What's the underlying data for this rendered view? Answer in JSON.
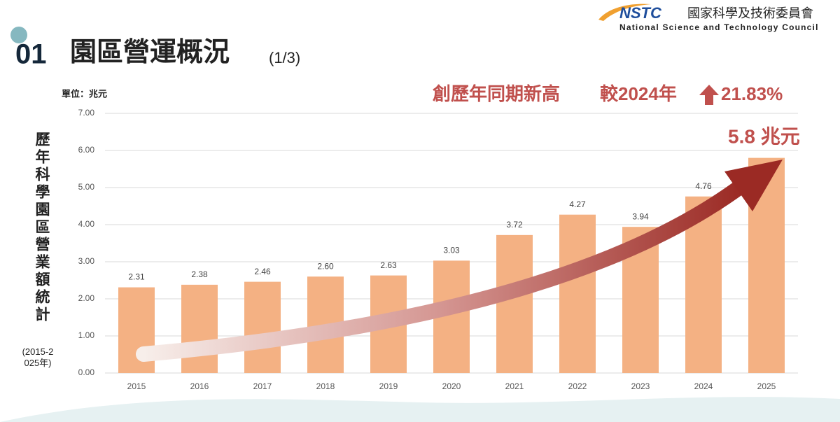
{
  "header": {
    "number": "01",
    "title": "園區營運概況",
    "page": "(1/3)"
  },
  "logo": {
    "mark": "NSTC",
    "name_zh": "國家科學及技術委員會",
    "name_en": "National Science and Technology Council"
  },
  "chart_data": {
    "type": "bar",
    "unit_label": "單位：兆元",
    "y_label": "歷年科學園區營業額統計",
    "y_label_note": "(2015-2025年)",
    "annotations": {
      "headline": "創歷年同期新高",
      "compare": "較2024年",
      "growth": "21.83%",
      "total": "5.8 兆元"
    },
    "categories": [
      "2015",
      "2016",
      "2017",
      "2018",
      "2019",
      "2020",
      "2021",
      "2022",
      "2023",
      "2024",
      "2025"
    ],
    "values": [
      2.31,
      2.38,
      2.46,
      2.6,
      2.63,
      3.03,
      3.72,
      4.27,
      3.94,
      4.76,
      5.8
    ],
    "value_labels": [
      "2.31",
      "2.38",
      "2.46",
      "2.60",
      "2.63",
      "3.03",
      "3.72",
      "4.27",
      "3.94",
      "4.76",
      null
    ],
    "color": "#f4b183",
    "ylim": [
      0,
      7
    ],
    "yticks": [
      {
        "value": 0,
        "label": "0.00"
      },
      {
        "value": 1,
        "label": "1.00"
      },
      {
        "value": 2,
        "label": "2.00"
      },
      {
        "value": 3,
        "label": "3.00"
      },
      {
        "value": 4,
        "label": "4.00"
      },
      {
        "value": 5,
        "label": "5.00"
      },
      {
        "value": 6,
        "label": "6.00"
      },
      {
        "value": 7,
        "label": "7.00"
      }
    ],
    "grid": true
  }
}
